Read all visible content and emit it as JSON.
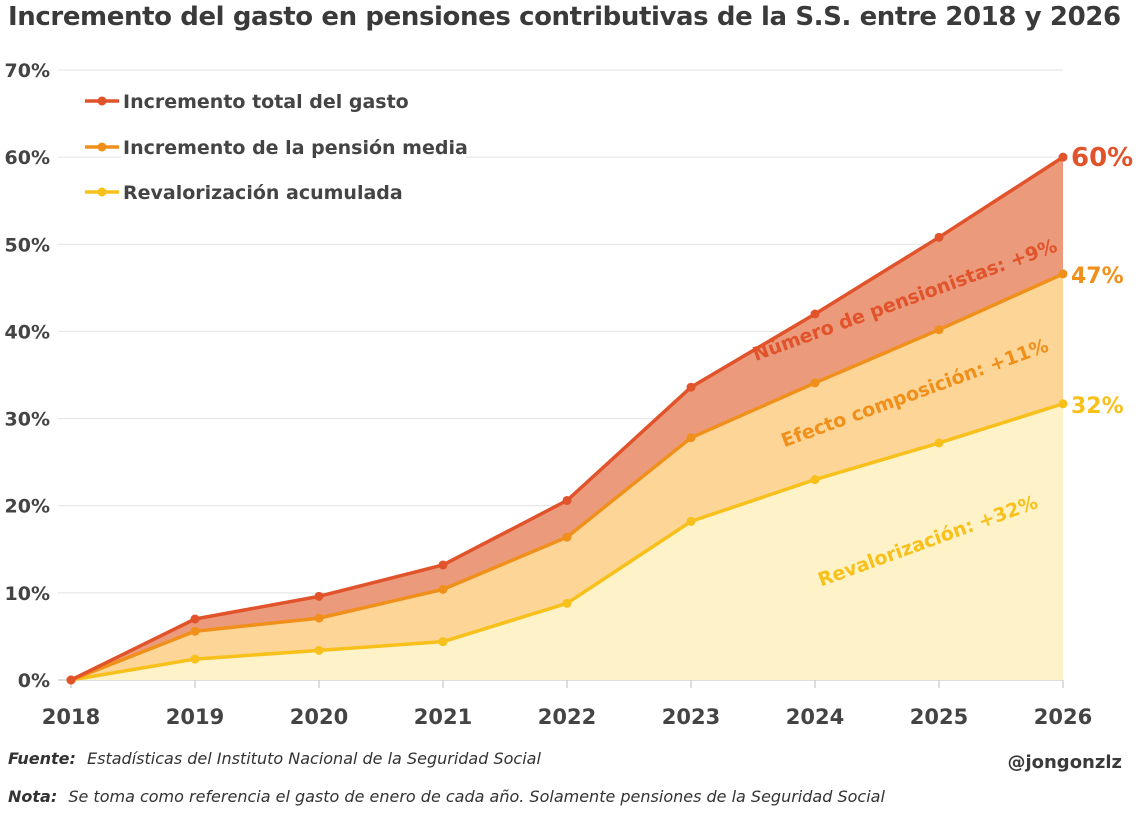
{
  "chart_data": {
    "type": "area",
    "title": "Incremento del gasto en pensiones contributivas de la S.S. entre 2018 y 2026",
    "x": [
      "2018",
      "2019",
      "2020",
      "2021",
      "2022",
      "2023",
      "2024",
      "2025",
      "2026"
    ],
    "y_ticks": [
      "0%",
      "10%",
      "20%",
      "30%",
      "40%",
      "50%",
      "60%",
      "70%"
    ],
    "ylim": [
      0,
      70
    ],
    "grid": true,
    "legend_position": "top-left",
    "series": [
      {
        "name": "Incremento total del gasto",
        "values": [
          0,
          7.0,
          9.6,
          13.2,
          20.6,
          33.6,
          42.0,
          50.8,
          60.0
        ],
        "color": "#e0532b",
        "fill": "#ec9a7c",
        "end_label": "60%"
      },
      {
        "name": "Incremento de la pensión media",
        "values": [
          0,
          5.6,
          7.1,
          10.4,
          16.4,
          27.8,
          34.1,
          40.2,
          46.6
        ],
        "color": "#f0901a",
        "fill": "#fdd597",
        "end_label": "47%"
      },
      {
        "name": "Revalorización acumulada",
        "values": [
          0,
          2.4,
          3.4,
          4.4,
          8.8,
          18.2,
          23.0,
          27.2,
          31.7
        ],
        "color": "#f8c01a",
        "fill": "#fef2c8",
        "end_label": "32%"
      }
    ],
    "band_labels": [
      {
        "text": "Número de pensionistas: +9%",
        "color": "#e0532b"
      },
      {
        "text": "Efecto composición: +11%",
        "color": "#f0901a"
      },
      {
        "text": "Revalorización: +32%",
        "color": "#f8c01a"
      }
    ]
  },
  "footer": {
    "source_key": "Fuente:",
    "source_text": "Estadísticas del Instituto Nacional de la Seguridad Social",
    "note_key": "Nota:",
    "note_text": "Se toma como referencia el gasto de enero de cada año. Solamente pensiones de la Seguridad Social",
    "author": "@jongonzlz"
  }
}
